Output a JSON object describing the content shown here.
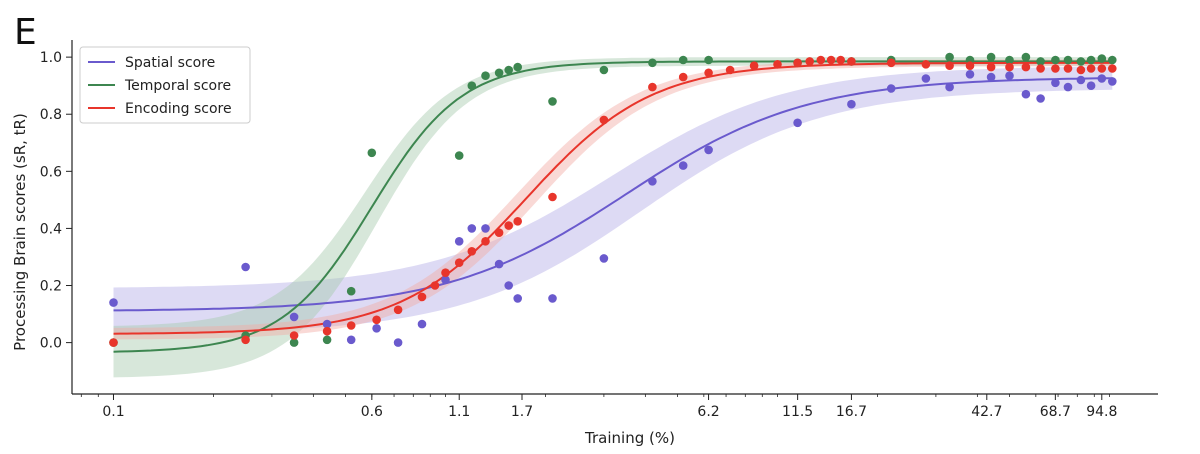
{
  "chart_data": {
    "type": "scatter",
    "panel_label": "E",
    "title": "",
    "xlabel": "Training (%)",
    "ylabel": "Processing Brain scores (sR, tR)",
    "x_scale": "log",
    "xlim": [
      0.075,
      140
    ],
    "ylim": [
      -0.18,
      1.06
    ],
    "x_ticks": [
      0.1,
      0.6,
      1.1,
      1.7,
      6.2,
      11.5,
      16.7,
      42.7,
      68.7,
      94.8
    ],
    "x_tick_labels": [
      "0.1",
      "0.6",
      "1.1",
      "1.7",
      "6.2",
      "11.5",
      "16.7",
      "42.7",
      "68.7",
      "94.8"
    ],
    "y_ticks": [
      0.0,
      0.2,
      0.4,
      0.6,
      0.8,
      1.0
    ],
    "y_tick_labels": [
      "0.0",
      "0.2",
      "0.4",
      "0.6",
      "0.8",
      "1.0"
    ],
    "legend_position": "upper-left",
    "series": [
      {
        "name": "Spatial score",
        "color": "#6a5acd",
        "band_color": "#b4aee6",
        "fit": {
          "lower": 0.11,
          "upper": 0.93,
          "midpoint": 3.5,
          "slope": 1.6,
          "ci_start": 0.08,
          "ci_end": 0.04
        },
        "points": [
          [
            0.1,
            0.14
          ],
          [
            0.25,
            0.265
          ],
          [
            0.35,
            0.09
          ],
          [
            0.44,
            0.065
          ],
          [
            0.52,
            0.01
          ],
          [
            0.62,
            0.05
          ],
          [
            0.72,
            0.0
          ],
          [
            0.85,
            0.065
          ],
          [
            1.0,
            0.22
          ],
          [
            1.1,
            0.355
          ],
          [
            1.2,
            0.4
          ],
          [
            1.32,
            0.4
          ],
          [
            1.45,
            0.275
          ],
          [
            1.55,
            0.2
          ],
          [
            1.65,
            0.155
          ],
          [
            2.1,
            0.155
          ],
          [
            3.0,
            0.295
          ],
          [
            4.2,
            0.565
          ],
          [
            5.2,
            0.62
          ],
          [
            6.2,
            0.675
          ],
          [
            11.5,
            0.77
          ],
          [
            16.7,
            0.835
          ],
          [
            22,
            0.89
          ],
          [
            28,
            0.925
          ],
          [
            33,
            0.895
          ],
          [
            38,
            0.94
          ],
          [
            44,
            0.93
          ],
          [
            50,
            0.935
          ],
          [
            56,
            0.87
          ],
          [
            62,
            0.855
          ],
          [
            68.7,
            0.91
          ],
          [
            75,
            0.895
          ],
          [
            82,
            0.92
          ],
          [
            88,
            0.9
          ],
          [
            94.8,
            0.925
          ],
          [
            102,
            0.915
          ]
        ]
      },
      {
        "name": "Temporal score",
        "color": "#3d8650",
        "band_color": "#a6c9ae",
        "fit": {
          "lower": -0.035,
          "upper": 0.985,
          "midpoint": 0.6,
          "slope": 3.2,
          "ci_start": 0.09,
          "ci_end": 0.015
        },
        "points": [
          [
            0.1,
            0.0
          ],
          [
            0.25,
            0.025
          ],
          [
            0.35,
            0.0
          ],
          [
            0.44,
            0.01
          ],
          [
            0.52,
            0.18
          ],
          [
            0.6,
            0.665
          ],
          [
            1.1,
            0.655
          ],
          [
            1.2,
            0.9
          ],
          [
            1.32,
            0.935
          ],
          [
            1.45,
            0.945
          ],
          [
            1.55,
            0.955
          ],
          [
            1.65,
            0.965
          ],
          [
            2.1,
            0.845
          ],
          [
            3.0,
            0.955
          ],
          [
            4.2,
            0.98
          ],
          [
            5.2,
            0.99
          ],
          [
            6.2,
            0.99
          ],
          [
            11.5,
            0.98
          ],
          [
            16.7,
            0.985
          ],
          [
            22,
            0.99
          ],
          [
            33,
            1.0
          ],
          [
            38,
            0.99
          ],
          [
            44,
            1.0
          ],
          [
            50,
            0.99
          ],
          [
            56,
            1.0
          ],
          [
            62,
            0.985
          ],
          [
            68.7,
            0.99
          ],
          [
            75,
            0.99
          ],
          [
            82,
            0.985
          ],
          [
            88,
            0.99
          ],
          [
            94.8,
            0.995
          ],
          [
            102,
            0.99
          ]
        ]
      },
      {
        "name": "Encoding score",
        "color": "#e8352b",
        "band_color": "#f2aaa4",
        "fit": {
          "lower": 0.03,
          "upper": 0.98,
          "midpoint": 1.75,
          "slope": 2.3,
          "ci_start": 0.02,
          "ci_end": 0.012
        },
        "points": [
          [
            0.1,
            0.0
          ],
          [
            0.25,
            0.01
          ],
          [
            0.35,
            0.025
          ],
          [
            0.44,
            0.04
          ],
          [
            0.52,
            0.06
          ],
          [
            0.62,
            0.08
          ],
          [
            0.72,
            0.115
          ],
          [
            0.85,
            0.16
          ],
          [
            0.93,
            0.2
          ],
          [
            1.0,
            0.245
          ],
          [
            1.1,
            0.28
          ],
          [
            1.2,
            0.32
          ],
          [
            1.32,
            0.355
          ],
          [
            1.45,
            0.385
          ],
          [
            1.55,
            0.41
          ],
          [
            1.65,
            0.425
          ],
          [
            2.1,
            0.51
          ],
          [
            3.0,
            0.78
          ],
          [
            4.2,
            0.895
          ],
          [
            5.2,
            0.93
          ],
          [
            6.2,
            0.945
          ],
          [
            7.2,
            0.955
          ],
          [
            8.5,
            0.97
          ],
          [
            10,
            0.975
          ],
          [
            11.5,
            0.98
          ],
          [
            12.5,
            0.985
          ],
          [
            13.5,
            0.99
          ],
          [
            14.5,
            0.99
          ],
          [
            15.5,
            0.99
          ],
          [
            16.7,
            0.985
          ],
          [
            22,
            0.98
          ],
          [
            28,
            0.975
          ],
          [
            33,
            0.97
          ],
          [
            38,
            0.97
          ],
          [
            44,
            0.965
          ],
          [
            50,
            0.965
          ],
          [
            56,
            0.965
          ],
          [
            62,
            0.96
          ],
          [
            68.7,
            0.96
          ],
          [
            75,
            0.96
          ],
          [
            82,
            0.955
          ],
          [
            88,
            0.96
          ],
          [
            94.8,
            0.96
          ],
          [
            102,
            0.96
          ]
        ]
      }
    ]
  }
}
